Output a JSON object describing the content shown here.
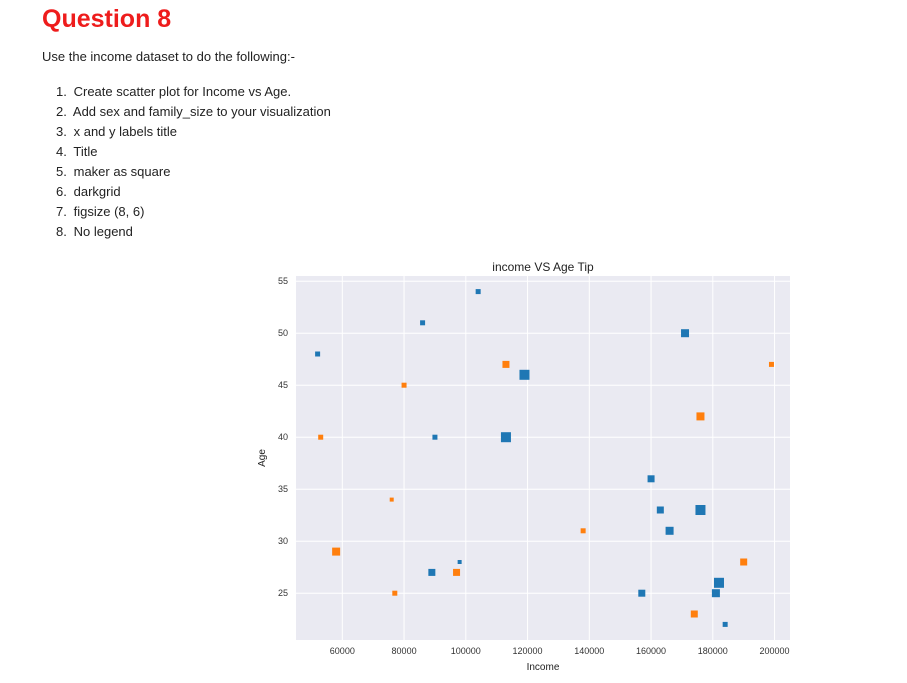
{
  "page": {
    "heading": "Question 8",
    "intro": "Use the income dataset to do the following:-",
    "tasks": [
      {
        "num": "1.",
        "text": "Create scatter plot for Income vs Age."
      },
      {
        "num": "2.",
        "text": "Add sex and family_size to your visualization"
      },
      {
        "num": "3.",
        "text": "x and y labels title"
      },
      {
        "num": "4.",
        "text": "Title"
      },
      {
        "num": "5.",
        "text": "maker as square"
      },
      {
        "num": "6.",
        "text": "darkgrid"
      },
      {
        "num": "7.",
        "text": "figsize (8, 6)"
      },
      {
        "num": "8.",
        "text": "No legend"
      }
    ]
  },
  "colors": {
    "heading": "#ee1c1c",
    "plot_background": "#eaeaf2",
    "grid": "#ffffff",
    "series_blue": "#1f77b4",
    "series_orange": "#ff7f0e"
  },
  "chart_data": {
    "type": "scatter",
    "title": "income VS Age Tip",
    "xlabel": "Income",
    "ylabel": "Age",
    "xlim": [
      45000,
      205000
    ],
    "ylim": [
      20.5,
      55.5
    ],
    "xticks": [
      60000,
      80000,
      100000,
      120000,
      140000,
      160000,
      180000,
      200000
    ],
    "yticks": [
      25,
      30,
      35,
      40,
      45,
      50,
      55
    ],
    "grid": true,
    "style": "darkgrid",
    "marker": "square",
    "legend": false,
    "series": [
      {
        "color": "#1f77b4",
        "points": [
          {
            "x": 52000,
            "y": 48,
            "size": 1
          },
          {
            "x": 104000,
            "y": 54,
            "size": 1
          },
          {
            "x": 86000,
            "y": 51,
            "size": 1
          },
          {
            "x": 90000,
            "y": 40,
            "size": 1
          },
          {
            "x": 98000,
            "y": 28,
            "size": 0
          },
          {
            "x": 89000,
            "y": 27,
            "size": 2
          },
          {
            "x": 113000,
            "y": 40,
            "size": 4
          },
          {
            "x": 119000,
            "y": 46,
            "size": 4
          },
          {
            "x": 171000,
            "y": 50,
            "size": 3
          },
          {
            "x": 160000,
            "y": 36,
            "size": 2
          },
          {
            "x": 163000,
            "y": 33,
            "size": 2
          },
          {
            "x": 166000,
            "y": 31,
            "size": 3
          },
          {
            "x": 176000,
            "y": 33,
            "size": 4
          },
          {
            "x": 157000,
            "y": 25,
            "size": 2
          },
          {
            "x": 181000,
            "y": 25,
            "size": 3
          },
          {
            "x": 182000,
            "y": 26,
            "size": 4
          },
          {
            "x": 184000,
            "y": 22,
            "size": 1
          }
        ]
      },
      {
        "color": "#ff7f0e",
        "points": [
          {
            "x": 53000,
            "y": 40,
            "size": 1
          },
          {
            "x": 58000,
            "y": 29,
            "size": 3
          },
          {
            "x": 76000,
            "y": 34,
            "size": 0
          },
          {
            "x": 77000,
            "y": 25,
            "size": 1
          },
          {
            "x": 80000,
            "y": 45,
            "size": 1
          },
          {
            "x": 97000,
            "y": 27,
            "size": 2
          },
          {
            "x": 113000,
            "y": 47,
            "size": 2
          },
          {
            "x": 138000,
            "y": 31,
            "size": 1
          },
          {
            "x": 176000,
            "y": 42,
            "size": 3
          },
          {
            "x": 174000,
            "y": 23,
            "size": 2
          },
          {
            "x": 190000,
            "y": 28,
            "size": 2
          },
          {
            "x": 199000,
            "y": 47,
            "size": 1
          }
        ]
      }
    ]
  }
}
